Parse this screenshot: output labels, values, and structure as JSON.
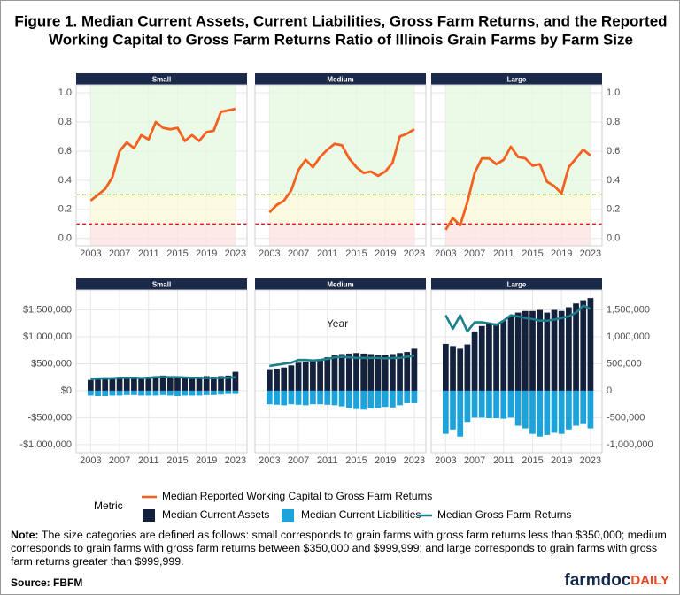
{
  "title": [
    "Figure 1. Median Current Assets, Current Liabilities, Gross Farm Returns, and the Reported",
    "Working Capital to Gross Farm Returns Ratio of Illinois Grain Farms by Farm Size"
  ],
  "x_label": "Year",
  "legend_title": "Metric",
  "chart_data": [
    {
      "type": "line",
      "strip": "Small",
      "y_axis": "left",
      "x": [
        2003,
        2004,
        2005,
        2006,
        2007,
        2008,
        2009,
        2010,
        2011,
        2012,
        2013,
        2014,
        2015,
        2016,
        2017,
        2018,
        2019,
        2020,
        2021,
        2022,
        2023
      ],
      "xlim": [
        2001,
        2024.6
      ],
      "xticks": [
        2003,
        2007,
        2011,
        2015,
        2019,
        2023
      ],
      "ylim": [
        -0.05,
        1.055
      ],
      "yticks": [
        {
          "value": 0,
          "label": "0.0"
        },
        0.2,
        0.4,
        0.6,
        0.8,
        {
          "value": 1,
          "label": "1.0"
        }
      ],
      "reference_lines": [
        {
          "value": 0.1,
          "color": "#e41a1c"
        },
        {
          "value": 0.3,
          "color": "#6b9a1f"
        }
      ],
      "zone_colors": [
        "#fde1e1",
        "#fbfad8",
        "#e3f8df"
      ],
      "series": [
        {
          "name": "Median Reported Working Capital to Gross Farm Returns",
          "kind": "line",
          "color": "#f4611e",
          "values": [
            0.26,
            0.3,
            0.34,
            0.42,
            0.6,
            0.66,
            0.62,
            0.71,
            0.68,
            0.8,
            0.76,
            0.75,
            0.76,
            0.67,
            0.71,
            0.67,
            0.73,
            0.74,
            0.87,
            0.88,
            0.89
          ]
        }
      ]
    },
    {
      "type": "line",
      "strip": "Medium",
      "y_axis": "none",
      "x": [
        2003,
        2004,
        2005,
        2006,
        2007,
        2008,
        2009,
        2010,
        2011,
        2012,
        2013,
        2014,
        2015,
        2016,
        2017,
        2018,
        2019,
        2020,
        2021,
        2022,
        2023
      ],
      "xlim": [
        2001,
        2024.6
      ],
      "xticks": [
        2003,
        2007,
        2011,
        2015,
        2019,
        2023
      ],
      "ylim": [
        -0.05,
        1.055
      ],
      "yticks": [
        0,
        0.2,
        0.4,
        0.6,
        0.8,
        1
      ],
      "reference_lines": [
        {
          "value": 0.1,
          "color": "#e41a1c"
        },
        {
          "value": 0.3,
          "color": "#6b9a1f"
        }
      ],
      "zone_colors": [
        "#fde1e1",
        "#fbfad8",
        "#e3f8df"
      ],
      "series": [
        {
          "name": "Median Reported Working Capital to Gross Farm Returns",
          "kind": "line",
          "color": "#f4611e",
          "values": [
            0.18,
            0.23,
            0.26,
            0.33,
            0.47,
            0.54,
            0.49,
            0.56,
            0.61,
            0.65,
            0.64,
            0.55,
            0.49,
            0.45,
            0.46,
            0.43,
            0.46,
            0.52,
            0.7,
            0.72,
            0.75
          ]
        }
      ]
    },
    {
      "type": "line",
      "strip": "Large",
      "y_axis": "right",
      "x": [
        2003,
        2004,
        2005,
        2006,
        2007,
        2008,
        2009,
        2010,
        2011,
        2012,
        2013,
        2014,
        2015,
        2016,
        2017,
        2018,
        2019,
        2020,
        2021,
        2022,
        2023
      ],
      "xlim": [
        2001,
        2024.6
      ],
      "xticks": [
        2003,
        2007,
        2011,
        2015,
        2019,
        2023
      ],
      "ylim": [
        -0.05,
        1.055
      ],
      "yticks": [
        {
          "value": 0,
          "label": "0.0"
        },
        0.2,
        0.4,
        0.6,
        0.8,
        {
          "value": 1,
          "label": "1.0"
        }
      ],
      "reference_lines": [
        {
          "value": 0.1,
          "color": "#e41a1c"
        },
        {
          "value": 0.3,
          "color": "#6b9a1f"
        }
      ],
      "zone_colors": [
        "#fde1e1",
        "#fbfad8",
        "#e3f8df"
      ],
      "series": [
        {
          "name": "Median Reported Working Capital to Gross Farm Returns",
          "kind": "line",
          "color": "#f4611e",
          "values": [
            0.06,
            0.14,
            0.09,
            0.25,
            0.45,
            0.55,
            0.55,
            0.51,
            0.54,
            0.63,
            0.56,
            0.55,
            0.5,
            0.51,
            0.39,
            0.36,
            0.31,
            0.49,
            0.55,
            0.61,
            0.57
          ]
        }
      ]
    },
    {
      "type": "combo",
      "strip": "Small",
      "y_axis": "left",
      "x": [
        2003,
        2004,
        2005,
        2006,
        2007,
        2008,
        2009,
        2010,
        2011,
        2012,
        2013,
        2014,
        2015,
        2016,
        2017,
        2018,
        2019,
        2020,
        2021,
        2022,
        2023
      ],
      "xlim": [
        2001,
        2024.6
      ],
      "xticks": [
        2003,
        2007,
        2011,
        2015,
        2019,
        2023
      ],
      "ylim": [
        -1150000,
        1870000
      ],
      "yticks": [
        {
          "value": -1000000,
          "label": "-$1,000,000"
        },
        {
          "value": -500000,
          "label": "-$500,000"
        },
        {
          "value": 0,
          "label": "$0"
        },
        {
          "value": 500000,
          "label": "$500,000"
        },
        {
          "value": 1000000,
          "label": "$1,000,000"
        },
        {
          "value": 1500000,
          "label": "$1,500,000"
        }
      ],
      "series": [
        {
          "name": "Median Current Assets",
          "kind": "bar",
          "color": "#14213d",
          "values": [
            200000,
            220000,
            230000,
            230000,
            250000,
            250000,
            260000,
            250000,
            260000,
            270000,
            280000,
            270000,
            270000,
            260000,
            260000,
            260000,
            270000,
            260000,
            270000,
            280000,
            350000
          ]
        },
        {
          "name": "Median Current Liabilities",
          "kind": "bar",
          "color": "#1ca3dc",
          "values": [
            -90000,
            -100000,
            -100000,
            -90000,
            -90000,
            -80000,
            -80000,
            -90000,
            -90000,
            -90000,
            -80000,
            -90000,
            -100000,
            -90000,
            -90000,
            -90000,
            -80000,
            -80000,
            -70000,
            -60000,
            -60000
          ]
        },
        {
          "name": "Median Gross Farm Returns",
          "kind": "line",
          "color": "#1b7f8c",
          "values": [
            220000,
            225000,
            230000,
            230000,
            240000,
            240000,
            240000,
            235000,
            240000,
            250000,
            250000,
            250000,
            250000,
            245000,
            240000,
            240000,
            235000,
            235000,
            240000,
            240000,
            250000
          ]
        }
      ]
    },
    {
      "type": "combo",
      "strip": "Medium",
      "y_axis": "none",
      "x": [
        2003,
        2004,
        2005,
        2006,
        2007,
        2008,
        2009,
        2010,
        2011,
        2012,
        2013,
        2014,
        2015,
        2016,
        2017,
        2018,
        2019,
        2020,
        2021,
        2022,
        2023
      ],
      "xlim": [
        2001,
        2024.6
      ],
      "xticks": [
        2003,
        2007,
        2011,
        2015,
        2019,
        2023
      ],
      "ylim": [
        -1150000,
        1870000
      ],
      "yticks": [
        -1000000,
        -500000,
        0,
        500000,
        1000000,
        1500000
      ],
      "series": [
        {
          "name": "Median Current Assets",
          "kind": "bar",
          "color": "#14213d",
          "values": [
            400000,
            410000,
            430000,
            470000,
            520000,
            540000,
            560000,
            580000,
            620000,
            660000,
            680000,
            690000,
            700000,
            690000,
            680000,
            660000,
            670000,
            680000,
            700000,
            720000,
            780000
          ]
        },
        {
          "name": "Median Current Liabilities",
          "kind": "bar",
          "color": "#1ca3dc",
          "values": [
            -250000,
            -260000,
            -270000,
            -250000,
            -260000,
            -270000,
            -250000,
            -250000,
            -260000,
            -270000,
            -290000,
            -320000,
            -340000,
            -350000,
            -330000,
            -320000,
            -300000,
            -310000,
            -270000,
            -230000,
            -230000
          ]
        },
        {
          "name": "Median Gross Farm Returns",
          "kind": "line",
          "color": "#1b7f8c",
          "values": [
            460000,
            480000,
            500000,
            520000,
            570000,
            570000,
            560000,
            570000,
            590000,
            620000,
            630000,
            620000,
            610000,
            610000,
            610000,
            610000,
            600000,
            610000,
            610000,
            630000,
            650000
          ]
        }
      ]
    },
    {
      "type": "combo",
      "strip": "Large",
      "y_axis": "right",
      "x": [
        2003,
        2004,
        2005,
        2006,
        2007,
        2008,
        2009,
        2010,
        2011,
        2012,
        2013,
        2014,
        2015,
        2016,
        2017,
        2018,
        2019,
        2020,
        2021,
        2022,
        2023
      ],
      "xlim": [
        2001,
        2024.6
      ],
      "xticks": [
        2003,
        2007,
        2011,
        2015,
        2019,
        2023
      ],
      "ylim": [
        -1150000,
        1870000
      ],
      "yticks": [
        {
          "value": -1000000,
          "label": "-1,000,000"
        },
        {
          "value": -500000,
          "label": "-500,000"
        },
        0,
        {
          "value": 500000,
          "label": "500,000"
        },
        {
          "value": 1000000,
          "label": "1,000,000"
        },
        {
          "value": 1500000,
          "label": "1,500,000"
        }
      ],
      "series": [
        {
          "name": "Median Current Assets",
          "kind": "bar",
          "color": "#14213d",
          "values": [
            870000,
            830000,
            780000,
            860000,
            1100000,
            1200000,
            1250000,
            1250000,
            1300000,
            1380000,
            1450000,
            1480000,
            1480000,
            1500000,
            1450000,
            1500000,
            1480000,
            1550000,
            1620000,
            1680000,
            1720000
          ]
        },
        {
          "name": "Median Current Liabilities",
          "kind": "bar",
          "color": "#1ca3dc",
          "values": [
            -800000,
            -720000,
            -850000,
            -580000,
            -500000,
            -500000,
            -510000,
            -510000,
            -520000,
            -500000,
            -650000,
            -700000,
            -800000,
            -850000,
            -820000,
            -780000,
            -800000,
            -720000,
            -650000,
            -620000,
            -700000
          ]
        },
        {
          "name": "Median Gross Farm Returns",
          "kind": "line",
          "color": "#1b7f8c",
          "values": [
            1400000,
            1150000,
            1400000,
            1100000,
            1270000,
            1270000,
            1250000,
            1220000,
            1300000,
            1400000,
            1380000,
            1350000,
            1330000,
            1300000,
            1300000,
            1320000,
            1350000,
            1380000,
            1450000,
            1580000,
            1520000
          ]
        }
      ]
    }
  ],
  "note": {
    "label": "Note:",
    "text": "The size categories are defined as follows: small corresponds to grain farms with gross farm returns less than $350,000; medium corresponds to grain farms with gross farm returns between $350,000 and $999,999; and large corresponds to grain farms with gross farm returns greater than $999,999."
  },
  "source": "Source: FBFM",
  "logo": [
    "farmdoc",
    "DAILY"
  ]
}
